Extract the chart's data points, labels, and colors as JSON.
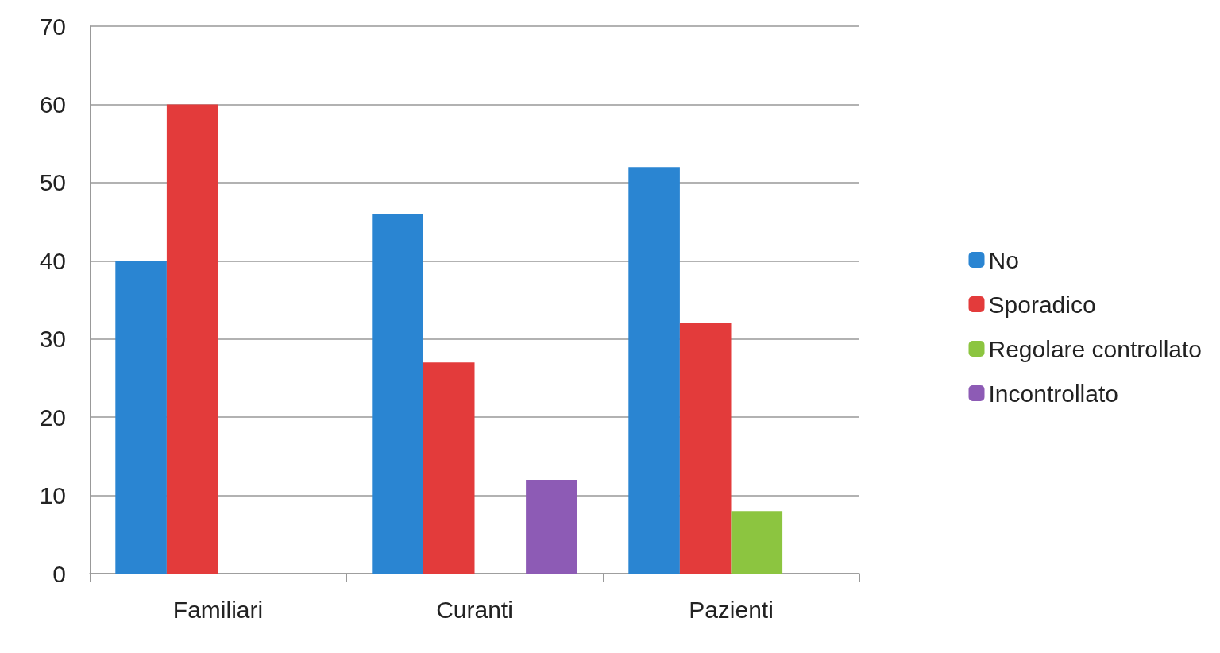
{
  "chart_data": {
    "type": "bar",
    "categories": [
      "Familiari",
      "Curanti",
      "Pazienti"
    ],
    "series": [
      {
        "name": "No",
        "color": "#2a85d2",
        "values": [
          40,
          46,
          52
        ]
      },
      {
        "name": "Sporadico",
        "color": "#e33b3b",
        "values": [
          60,
          27,
          32
        ]
      },
      {
        "name": "Regolare controllato",
        "color": "#8cc540",
        "values": [
          null,
          null,
          8
        ]
      },
      {
        "name": "Incontrollato",
        "color": "#8d5bb5",
        "values": [
          null,
          12,
          null
        ]
      }
    ],
    "ylim": [
      0,
      70
    ],
    "yticks": [
      0,
      10,
      20,
      30,
      40,
      50,
      60,
      70
    ],
    "grid": "y",
    "legend": "right"
  }
}
